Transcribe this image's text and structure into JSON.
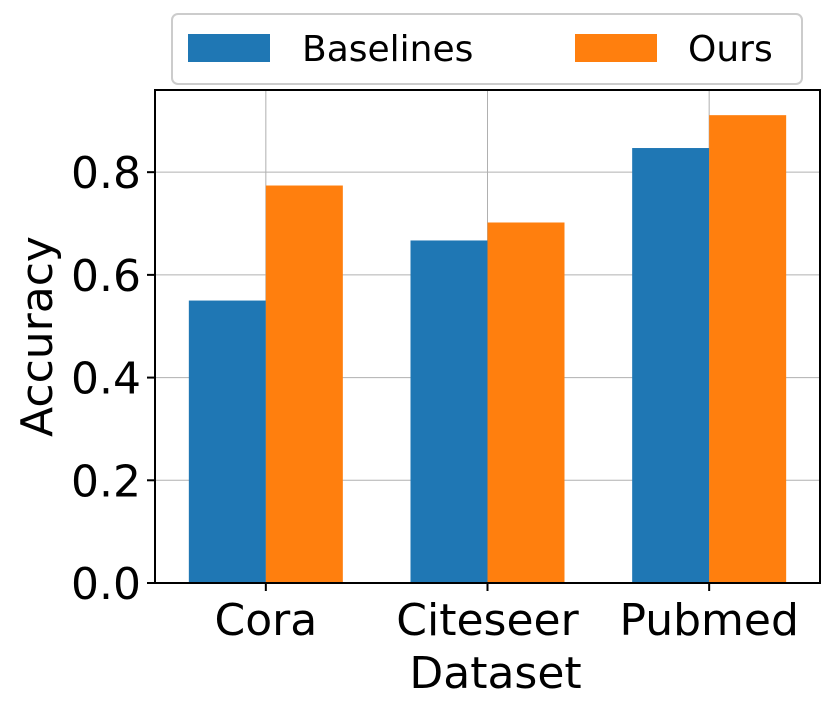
{
  "chart_data": {
    "type": "bar",
    "categories": [
      "Cora",
      "Citeseer",
      "Pubmed"
    ],
    "series": [
      {
        "name": "Baselines",
        "values": [
          0.55,
          0.667,
          0.847
        ],
        "color": "#1f77b4"
      },
      {
        "name": "Ours",
        "values": [
          0.774,
          0.702,
          0.911
        ],
        "color": "#ff7f0e"
      }
    ],
    "xlabel": "Dataset",
    "ylabel": "Accuracy",
    "ylim": [
      0,
      0.96
    ],
    "yticks": [
      "0.0",
      "0.2",
      "0.4",
      "0.6",
      "0.8"
    ],
    "grid": true,
    "legend_position": "top"
  }
}
